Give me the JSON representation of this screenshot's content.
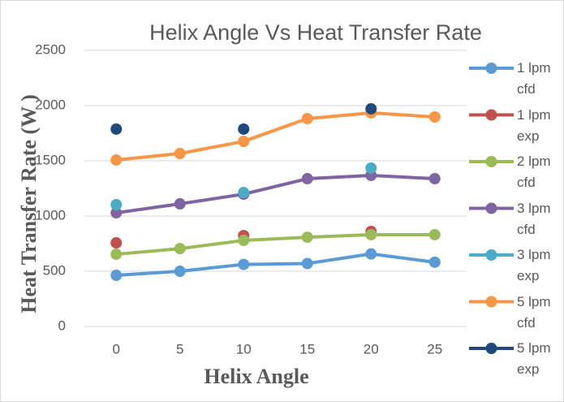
{
  "chart_data": {
    "type": "line",
    "title": "Helix Angle Vs Heat Transfer Rate",
    "x_label": "Helix Angle",
    "y_label": "Heat Transfer Rate (W )",
    "categories": [
      "0",
      "5",
      "10",
      "15",
      "20",
      "25"
    ],
    "series": [
      {
        "name": "1 lpm cfd",
        "color": "#5b9bd5",
        "line": true,
        "values": [
          463,
          500,
          562,
          570,
          657,
          582
        ]
      },
      {
        "name": "1 lpm exp",
        "color": "#c0504d",
        "line": false,
        "values": [
          757,
          null,
          823,
          null,
          860,
          null
        ]
      },
      {
        "name": "2 lpm cfd",
        "color": "#9bbb59",
        "line": true,
        "values": [
          654,
          705,
          779,
          808,
          831,
          831
        ]
      },
      {
        "name": "3 lpm cfd",
        "color": "#8064a2",
        "line": true,
        "values": [
          1029,
          1110,
          1198,
          1338,
          1368,
          1338
        ]
      },
      {
        "name": "3 lpm exp",
        "color": "#4bacc6",
        "line": false,
        "values": [
          1103,
          null,
          1213,
          null,
          1434,
          null
        ]
      },
      {
        "name": "5 lpm cfd",
        "color": "#f79646",
        "line": true,
        "values": [
          1507,
          1566,
          1676,
          1882,
          1934,
          1897
        ]
      },
      {
        "name": "5 lpm exp",
        "color": "#1f497d",
        "line": false,
        "values": [
          1787,
          null,
          1787,
          null,
          1971,
          null
        ]
      }
    ],
    "ylim": [
      0,
      2500
    ],
    "yticks": [
      0,
      500,
      1000,
      1500,
      2000,
      2500
    ],
    "grid": true,
    "legend": "right"
  }
}
